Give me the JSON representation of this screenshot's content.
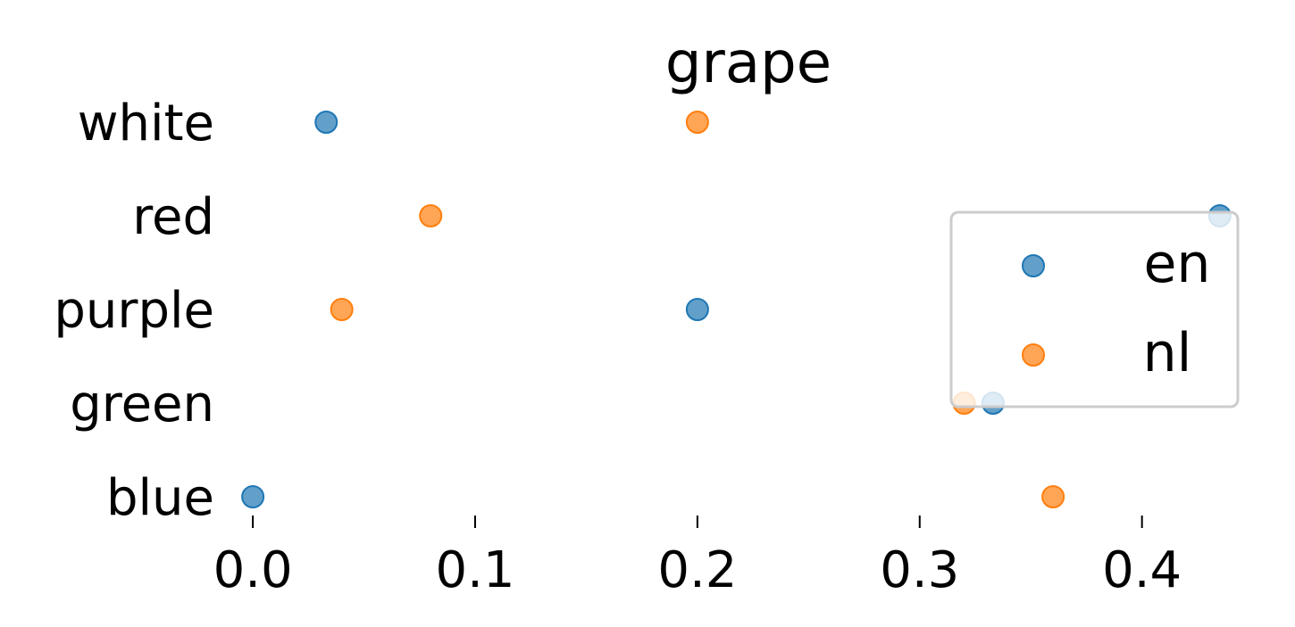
{
  "chart_data": {
    "type": "scatter",
    "title": "grape",
    "xlabel": "",
    "ylabel": "",
    "xlim": [
      -0.0125,
      0.4375
    ],
    "x_ticks": [
      "0.0",
      "0.1",
      "0.2",
      "0.3",
      "0.4"
    ],
    "x_tick_values": [
      0.0,
      0.1,
      0.2,
      0.3,
      0.4
    ],
    "categories": [
      "white",
      "red",
      "purple",
      "green",
      "blue"
    ],
    "series": [
      {
        "name": "en",
        "color": "#1f77b4",
        "values": [
          0.033,
          0.435,
          0.2,
          0.333,
          0.0
        ]
      },
      {
        "name": "nl",
        "color": "#ff7f0e",
        "values": [
          0.2,
          0.08,
          0.04,
          0.32,
          0.36
        ]
      }
    ],
    "legend": {
      "position": "right",
      "entries": [
        "en",
        "nl"
      ]
    },
    "grid": false
  }
}
